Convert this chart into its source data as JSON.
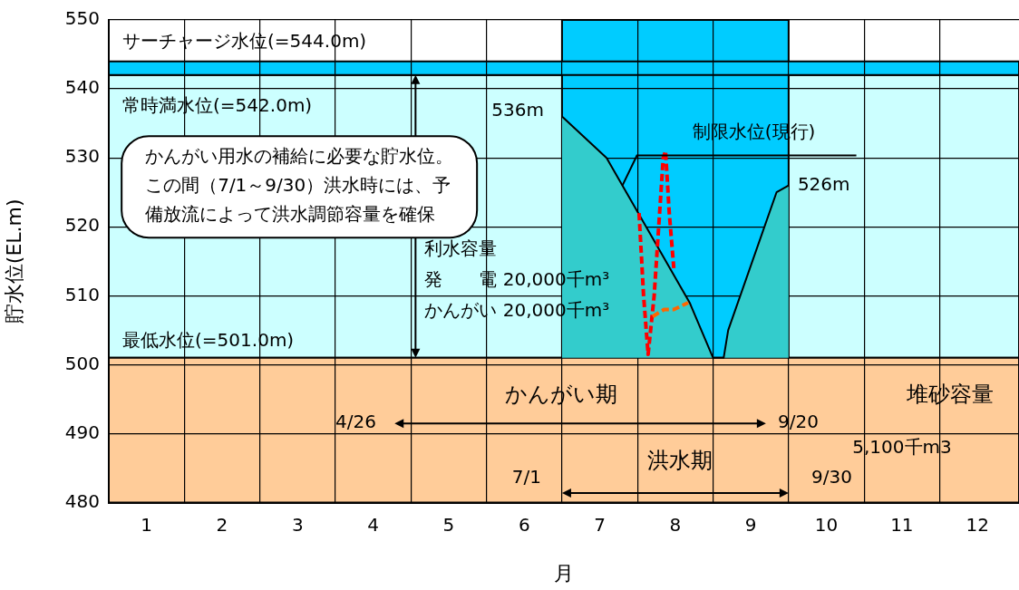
{
  "chart_data": {
    "type": "area",
    "xlabel": "月",
    "ylabel": "貯水位(EL.m)",
    "xlim": [
      0,
      12.05
    ],
    "xticks": [
      {
        "value": 0,
        "label": null
      },
      {
        "value": 0.5,
        "label": "1"
      },
      {
        "value": 1,
        "label": null
      },
      {
        "value": 1.5,
        "label": "2"
      },
      {
        "value": 2,
        "label": null
      },
      {
        "value": 2.5,
        "label": "3"
      },
      {
        "value": 3,
        "label": null
      },
      {
        "value": 3.5,
        "label": "4"
      },
      {
        "value": 4,
        "label": null
      },
      {
        "value": 4.5,
        "label": "5"
      },
      {
        "value": 5,
        "label": null
      },
      {
        "value": 5.5,
        "label": "6"
      },
      {
        "value": 6,
        "label": null
      },
      {
        "value": 6.5,
        "label": "7"
      },
      {
        "value": 7,
        "label": null
      },
      {
        "value": 7.5,
        "label": "8"
      },
      {
        "value": 8,
        "label": null
      },
      {
        "value": 8.5,
        "label": "9"
      },
      {
        "value": 9,
        "label": null
      },
      {
        "value": 9.5,
        "label": "10"
      },
      {
        "value": 10,
        "label": null
      },
      {
        "value": 10.5,
        "label": "11"
      },
      {
        "value": 11,
        "label": null
      },
      {
        "value": 11.5,
        "label": "12"
      }
    ],
    "ylim": [
      480,
      550
    ],
    "yticks": [
      480,
      490,
      500,
      510,
      520,
      530,
      540,
      550
    ],
    "grid": true,
    "legend": false,
    "series": [
      {
        "color": "#33cccc",
        "x": [
          6,
          6.59,
          7.69,
          8.0,
          8.14,
          8.2,
          8.84,
          9.0
        ],
        "values": [
          536,
          530,
          509,
          501,
          501,
          505,
          525,
          526
        ]
      },
      {
        "type": "line",
        "color": "#ff0000",
        "line_style": "dashed",
        "marker": "none",
        "x": [
          7.02,
          7.08,
          7.14,
          7.22,
          7.28,
          7.34,
          7.37,
          7.42,
          7.48
        ],
        "values": [
          522,
          510,
          501.5,
          510,
          520,
          530,
          531,
          522,
          514
        ]
      },
      {
        "type": "line",
        "color": "#ff6600",
        "line_style": "dashed",
        "marker": "none",
        "x": [
          7.2,
          7.35,
          7.48,
          7.67
        ],
        "values": [
          507,
          508,
          508,
          509
        ]
      }
    ],
    "bands": [
      {
        "axis": "y",
        "from": 501,
        "to": 542,
        "label": "利水容量",
        "color": "#ccffff"
      },
      {
        "axis": "x",
        "from": 6,
        "to": 9,
        "label": "洪水期",
        "color": "#00ccff"
      },
      {
        "axis": "y",
        "from": 542,
        "to": 544,
        "color": "#00ccff"
      },
      {
        "axis": "y",
        "from": 480,
        "to": 501,
        "color": "#ffcc99"
      }
    ],
    "annotations": [
      "サーチャージ水位(=544.0m)",
      "常時満水位(=542.0m)",
      "最低水位(=501.0m)",
      {
        "text": "536m",
        "x": 6,
        "y": 536
      },
      {
        "text": "制限水位(現行)",
        "x": 6.8,
        "y": 526
      },
      {
        "text": "526m",
        "x": 9,
        "y": 526
      },
      "かんがい用水の補給に必要な貯水位。この間（7/1～9/30）洪水時には、予備放流によって洪水調節容量を確保",
      "発　　電 20,000千m³",
      "かんがい 20,000千m³",
      "堆砂容量",
      "5,100千m3",
      "4/26",
      "9/20",
      "7/1",
      "9/30",
      "かんがい期"
    ]
  }
}
